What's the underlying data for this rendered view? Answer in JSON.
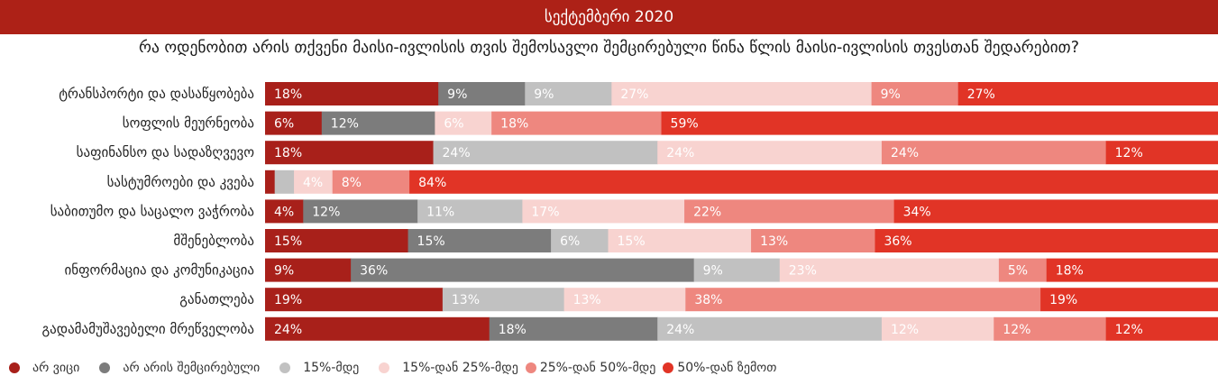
{
  "header": {
    "title": "სექტემბერი 2020"
  },
  "question": "რა ოდენობით არის თქვენი მაისი-ივლისის თვის შემოსავლი შემცირებული წინა წლის მაისი-ივლისის თვესთან შედარებით?",
  "colors": [
    "#a8201a",
    "#7c7c7c",
    "#c1c1c1",
    "#f8d3d0",
    "#ee877f",
    "#e13426"
  ],
  "legend": [
    {
      "label": "არ ვიცი",
      "color": "#a8201a"
    },
    {
      "label": "არ არის შემცირებული",
      "color": "#7c7c7c"
    },
    {
      "label": "15%-მდე",
      "color": "#c1c1c1"
    },
    {
      "label": "15%-დან 25%-მდე",
      "color": "#f8d3d0"
    },
    {
      "label": "25%-დან 50%-მდე",
      "color": "#ee877f"
    },
    {
      "label": "50%-დან ზემოთ",
      "color": "#e13426"
    }
  ],
  "chart_data": {
    "type": "bar",
    "stacked": true,
    "orientation": "horizontal",
    "normalized": true,
    "categories": [
      "ტრანსპორტი და დასაწყობება",
      "სოფლის მეურნეობა",
      "საფინანსო და სადაზღვევო",
      "სასტუმროები და კვება",
      "საბითუმო და საცალო ვაჭრობა",
      "მშენებლობა",
      "ინფორმაცია და კომუნიკაცია",
      "განათლება",
      "გადამამუშავებელი მრეწველობა"
    ],
    "series": [
      {
        "name": "არ ვიცი",
        "values": [
          18,
          6,
          18,
          1,
          4,
          15,
          9,
          19,
          24
        ]
      },
      {
        "name": "არ არის შემცირებული",
        "values": [
          9,
          12,
          0,
          0,
          12,
          15,
          36,
          0,
          18
        ]
      },
      {
        "name": "15%-მდე",
        "values": [
          9,
          0,
          24,
          2,
          11,
          6,
          9,
          13,
          24
        ]
      },
      {
        "name": "15%-დან 25%-მდე",
        "values": [
          27,
          6,
          24,
          4,
          17,
          15,
          23,
          13,
          12
        ]
      },
      {
        "name": "25%-დან 50%-მდე",
        "values": [
          9,
          18,
          24,
          8,
          22,
          13,
          5,
          38,
          12
        ]
      },
      {
        "name": "50%-დან ზემოთ",
        "values": [
          27,
          59,
          12,
          84,
          34,
          36,
          18,
          19,
          12
        ]
      }
    ],
    "data_labels": [
      [
        "18%",
        "9%",
        "9%",
        "27%",
        "9%",
        "27%"
      ],
      [
        "6%",
        "12%",
        "",
        "6%",
        "18%",
        "59%"
      ],
      [
        "18%",
        "",
        "24%",
        "24%",
        "24%",
        "12%"
      ],
      [
        "",
        "",
        "",
        "4%",
        "8%",
        "84%"
      ],
      [
        "4%",
        "12%",
        "11%",
        "17%",
        "22%",
        "34%"
      ],
      [
        "15%",
        "15%",
        "6%",
        "15%",
        "13%",
        "36%"
      ],
      [
        "9%",
        "36%",
        "9%",
        "23%",
        "5%",
        "18%"
      ],
      [
        "19%",
        "",
        "13%",
        "13%",
        "38%",
        "19%"
      ],
      [
        "24%",
        "18%",
        "24%",
        "12%",
        "12%",
        "12%"
      ]
    ],
    "legend_position": "bottom-left",
    "grid": false
  }
}
